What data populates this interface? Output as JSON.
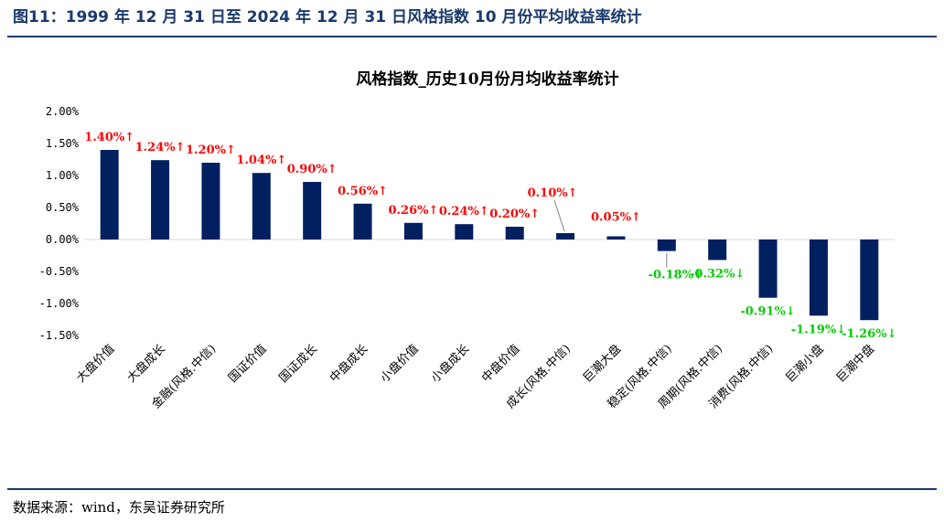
{
  "figure": {
    "caption": "图11：1999 年 12 月 31 日至 2024 年 12 月 31 日风格指数 10 月份平均收益率统计",
    "source": "数据来源：wind，东吴证券研究所"
  },
  "colors": {
    "bar": "#002060",
    "positive_label": "#ff0000",
    "negative_label": "#00cc00",
    "rule": "#1a3a6b"
  },
  "chart_data": {
    "type": "bar",
    "title": "风格指数_历史10月份月均收益率统计",
    "xlabel": "",
    "ylabel": "",
    "ylim": [
      -1.5,
      2.0
    ],
    "yticks": [
      "2.00%",
      "1.50%",
      "1.00%",
      "0.50%",
      "0.00%",
      "-0.50%",
      "-1.00%",
      "-1.50%"
    ],
    "ytick_values": [
      2.0,
      1.5,
      1.0,
      0.5,
      0.0,
      -0.5,
      -1.0,
      -1.5
    ],
    "grid": false,
    "legend": "none",
    "categories": [
      "大盘价值",
      "大盘成长",
      "金融(风格.中信)",
      "国证价值",
      "国证成长",
      "中盘成长",
      "小盘价值",
      "小盘成长",
      "中盘价值",
      "成长(风格.中信)",
      "巨潮大盘",
      "稳定(风格.中信)",
      "周期(风格.中信)",
      "消费(风格.中信)",
      "巨潮小盘",
      "巨潮中盘"
    ],
    "values": [
      1.4,
      1.24,
      1.2,
      1.04,
      0.9,
      0.56,
      0.26,
      0.24,
      0.2,
      0.1,
      0.05,
      -0.18,
      -0.32,
      -0.91,
      -1.19,
      -1.26
    ],
    "data_labels": [
      "1.40%↑",
      "1.24%↑",
      "1.20%↑",
      "1.04%↑",
      "0.90%↑",
      "0.56%↑",
      "0.26%↑",
      "0.24%↑",
      "0.20%↑",
      "0.10%↑",
      "0.05%↑",
      "-0.18%↓",
      "-0.32%↓",
      "-0.91%↓",
      "-1.19%↓",
      "-1.26%↓"
    ]
  }
}
